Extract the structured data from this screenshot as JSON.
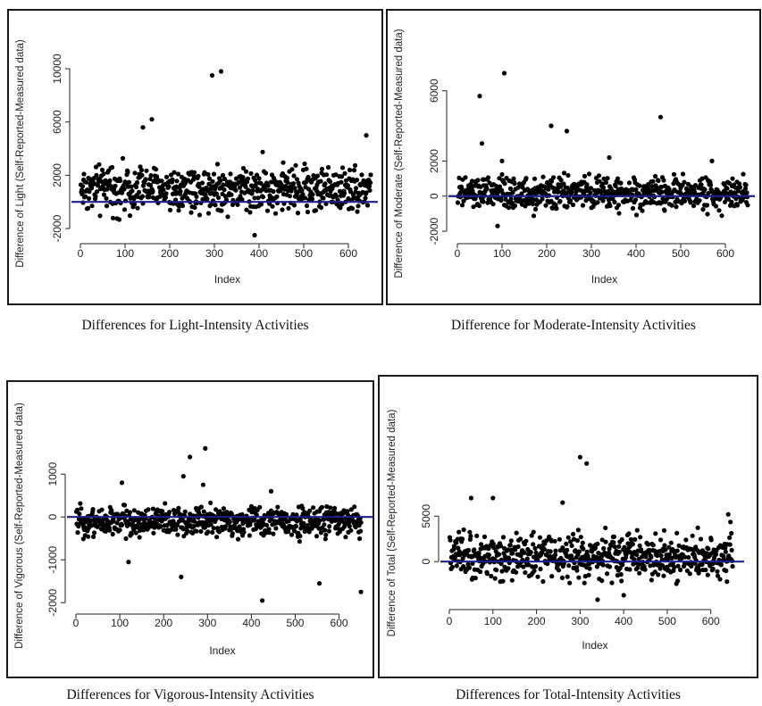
{
  "colors": {
    "points": "#000000",
    "zero_line": "#1b1f8a",
    "frame": "#1a1a1a"
  },
  "chart_data": [
    {
      "type": "scatter",
      "title": "",
      "caption": "Differences for Light-Intensity Activities",
      "xlabel": "Index",
      "ylabel": "Difference of Light (Self-Reported-Measured data)",
      "xlim": [
        0,
        650
      ],
      "ylim": [
        -2600,
        10000
      ],
      "x_ticks": [
        "0",
        "100",
        "200",
        "300",
        "400",
        "500",
        "600"
      ],
      "y_ticks": [
        "-2000",
        "2000",
        "6000",
        "10000"
      ],
      "y_tick_values": [
        -2000,
        2000,
        6000,
        10000
      ],
      "reference_line_y": 0,
      "grid": false,
      "series": [
        {
          "x": [],
          "y": []
        }
      ],
      "notable_points": [
        [
          140,
          5600
        ],
        [
          160,
          6200
        ],
        [
          295,
          9500
        ],
        [
          315,
          9800
        ],
        [
          640,
          5000
        ],
        [
          390,
          -2500
        ]
      ],
      "typical_spread": [
        -1500,
        3500
      ]
    },
    {
      "type": "scatter",
      "title": "",
      "caption": "Difference for Moderate-Intensity Activities",
      "xlabel": "Index",
      "ylabel": "Difference of Moderate (Self-Reported-Measured data)",
      "xlim": [
        0,
        650
      ],
      "ylim": [
        -2300,
        7000
      ],
      "x_ticks": [
        "0",
        "100",
        "200",
        "300",
        "400",
        "500",
        "600"
      ],
      "y_ticks": [
        "-2000",
        "0",
        "2000",
        "6000"
      ],
      "y_tick_values": [
        -2000,
        0,
        2000,
        6000
      ],
      "reference_line_y": 0,
      "grid": false,
      "series": [
        {
          "x": [],
          "y": []
        }
      ],
      "notable_points": [
        [
          50,
          5700
        ],
        [
          55,
          3000
        ],
        [
          105,
          7000
        ],
        [
          210,
          4000
        ],
        [
          245,
          3700
        ],
        [
          455,
          4500
        ],
        [
          340,
          2200
        ],
        [
          570,
          2000
        ],
        [
          100,
          2000
        ],
        [
          90,
          -1700
        ]
      ],
      "typical_spread": [
        -1200,
        1500
      ]
    },
    {
      "type": "scatter",
      "title": "",
      "caption": "Differences for Vigorous-Intensity Activities",
      "xlabel": "Index",
      "ylabel": "Difference of Vigorous (Self-Reported-Measured data)",
      "xlim": [
        0,
        660
      ],
      "ylim": [
        -2100,
        1650
      ],
      "x_ticks": [
        "0",
        "100",
        "200",
        "300",
        "400",
        "500",
        "600"
      ],
      "y_ticks": [
        "-2000",
        "-1000",
        "0",
        "1000"
      ],
      "y_tick_values": [
        -2000,
        -1000,
        0,
        1000
      ],
      "reference_line_y": 0,
      "grid": false,
      "series": [
        {
          "x": [],
          "y": []
        }
      ],
      "notable_points": [
        [
          260,
          1400
        ],
        [
          295,
          1600
        ],
        [
          245,
          950
        ],
        [
          105,
          800
        ],
        [
          120,
          -1050
        ],
        [
          240,
          -1400
        ],
        [
          425,
          -1950
        ],
        [
          555,
          -1550
        ],
        [
          650,
          -1750
        ],
        [
          445,
          600
        ],
        [
          290,
          750
        ]
      ],
      "typical_spread": [
        -600,
        400
      ]
    },
    {
      "type": "scatter",
      "title": "",
      "caption": "Differences for Total-Intensity Activities",
      "xlabel": "Index",
      "ylabel": "Difference of Total (Self-Reported-Measured data)",
      "xlim": [
        0,
        660
      ],
      "ylim": [
        -4500,
        12500
      ],
      "x_ticks": [
        "0",
        "100",
        "200",
        "300",
        "400",
        "500",
        "600"
      ],
      "y_ticks": [
        "0",
        "5000"
      ],
      "y_tick_values": [
        0,
        5000
      ],
      "reference_line_y": 0,
      "grid": false,
      "series": [
        {
          "x": [],
          "y": []
        }
      ],
      "notable_points": [
        [
          300,
          11500
        ],
        [
          315,
          10800
        ],
        [
          50,
          7000
        ],
        [
          100,
          7000
        ],
        [
          260,
          6500
        ],
        [
          640,
          5200
        ],
        [
          340,
          -4200
        ],
        [
          400,
          -3700
        ]
      ],
      "typical_spread": [
        -3000,
        4000
      ]
    }
  ]
}
